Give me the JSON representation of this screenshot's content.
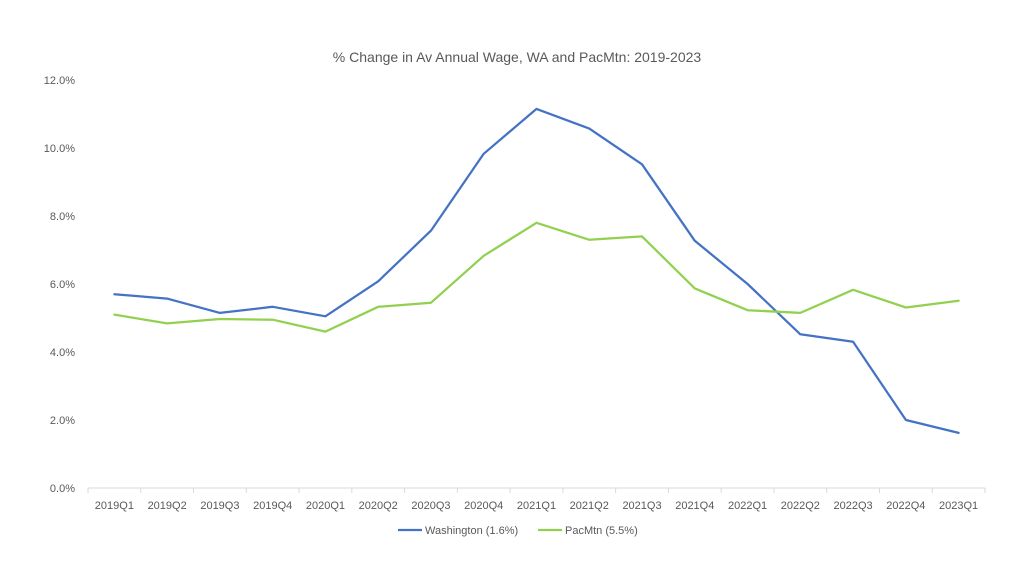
{
  "chart_data": {
    "type": "line",
    "title": "% Change in Av Annual Wage, WA and PacMtn: 2019-2023",
    "xlabel": "",
    "ylabel": "",
    "categories": [
      "2019Q1",
      "2019Q2",
      "2019Q3",
      "2019Q4",
      "2020Q1",
      "2020Q2",
      "2020Q3",
      "2020Q4",
      "2021Q1",
      "2021Q2",
      "2021Q3",
      "2021Q4",
      "2022Q1",
      "2022Q2",
      "2022Q3",
      "2022Q4",
      "2023Q1"
    ],
    "ylim": [
      0,
      12
    ],
    "yticks": [
      "0.0%",
      "2.0%",
      "4.0%",
      "6.0%",
      "8.0%",
      "10.0%",
      "12.0%"
    ],
    "grid": false,
    "legend_position": "bottom",
    "series": [
      {
        "name": "Washington (1.6%)",
        "color": "#4472C4",
        "values": [
          5.7,
          5.57,
          5.15,
          5.33,
          5.05,
          6.08,
          7.57,
          9.83,
          11.15,
          10.57,
          9.52,
          7.27,
          6.0,
          4.52,
          4.3,
          2.0,
          1.62
        ]
      },
      {
        "name": "PacMtn (5.5%)",
        "color": "#92D050",
        "values": [
          5.1,
          4.84,
          4.97,
          4.95,
          4.6,
          5.33,
          5.45,
          6.83,
          7.8,
          7.3,
          7.4,
          5.87,
          5.23,
          5.15,
          5.83,
          5.31,
          5.51
        ]
      }
    ]
  }
}
